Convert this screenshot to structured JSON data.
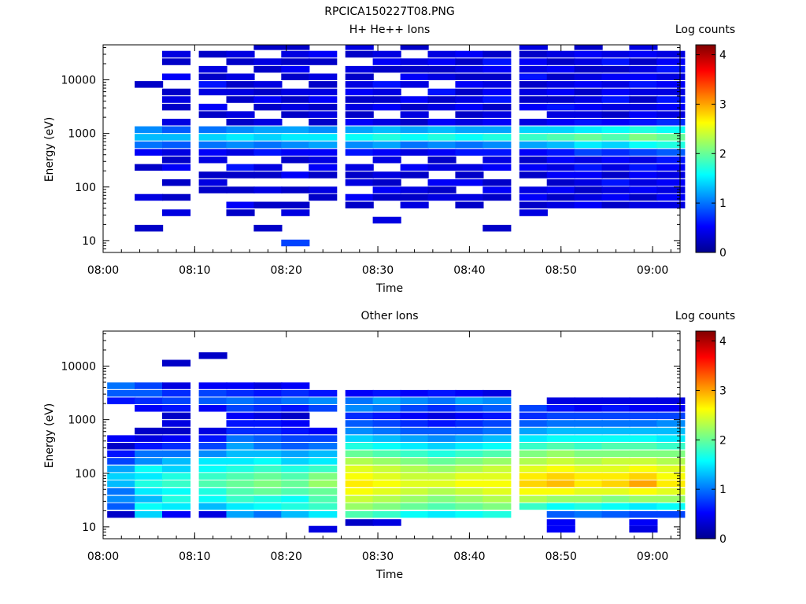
{
  "figure_title": "RPCICA150227T08.PNG",
  "colorbar_ticks": [
    "0",
    "1",
    "2",
    "3",
    "4"
  ],
  "chart_data": [
    {
      "type": "heatmap",
      "title": "H+ He++ Ions",
      "xlabel": "Time",
      "ylabel": "Energy (eV)",
      "colorbar_label": "Log counts",
      "colorbar_range": [
        0,
        4.2
      ],
      "colormap": "jet",
      "y_scale": "log",
      "xlim": [
        "08:00",
        "09:03"
      ],
      "ylim": [
        6,
        45000
      ],
      "x_ticks": [
        "08:00",
        "08:10",
        "08:20",
        "08:30",
        "08:40",
        "08:50",
        "09:00"
      ],
      "y_ticks": [
        "10",
        "100",
        "1000",
        "10000"
      ],
      "time_columns": [
        "08:02",
        "08:05",
        "08:08",
        "08:12",
        "08:15",
        "08:18",
        "08:21",
        "08:24",
        "08:28",
        "08:31",
        "08:34",
        "08:37",
        "08:40",
        "08:43",
        "08:47",
        "08:50",
        "08:53",
        "08:56",
        "08:59",
        "09:02"
      ],
      "energy_channels_ev": [
        9,
        12,
        17,
        24,
        33,
        46,
        64,
        88,
        121,
        168,
        232,
        321,
        444,
        614,
        849,
        1174,
        1623,
        2245,
        3105,
        4294,
        5938,
        8212,
        11356,
        15705,
        21719,
        30036,
        41537
      ],
      "log_counts": [
        [
          0,
          0,
          0,
          0,
          0,
          0,
          0,
          0,
          0,
          0,
          0,
          0,
          0,
          0,
          0,
          0,
          0,
          0,
          0,
          0,
          0,
          0,
          0,
          0,
          0,
          0,
          0
        ],
        [
          0,
          0,
          0.3,
          0,
          0,
          0,
          0.4,
          0,
          0,
          0,
          0.3,
          0,
          0.5,
          1.0,
          1.3,
          1.1,
          0,
          0,
          0,
          0,
          0,
          0.3,
          0,
          0,
          0,
          0,
          0
        ],
        [
          0,
          0,
          0,
          0,
          0.4,
          0,
          0.3,
          0,
          0.3,
          0,
          0.5,
          0.3,
          0.4,
          0.9,
          1.3,
          0.9,
          0.4,
          0,
          0.3,
          0.4,
          0.3,
          0,
          0.5,
          0,
          0.3,
          0.4,
          0
        ],
        [
          0,
          0,
          0,
          0,
          0,
          0,
          0,
          0.3,
          0.4,
          0.3,
          0,
          0.4,
          0.5,
          1.0,
          1.4,
          1.0,
          0,
          0.3,
          0.5,
          0,
          0.4,
          0.6,
          0.3,
          0.4,
          0,
          0.3,
          0
        ],
        [
          0,
          0,
          0,
          0,
          0.3,
          0.5,
          0,
          0.3,
          0,
          0.3,
          0.6,
          0,
          0.4,
          1.1,
          1.5,
          1.1,
          0.3,
          0.4,
          0,
          0.3,
          0.4,
          0.3,
          0.4,
          0,
          0.3,
          0.4,
          0
        ],
        [
          0,
          0,
          0.3,
          0,
          0,
          0.3,
          0,
          0.4,
          0,
          0.3,
          0.4,
          0,
          0.6,
          1.0,
          1.4,
          1.2,
          0.4,
          0,
          0.3,
          0.5,
          0.3,
          0.4,
          0,
          0.3,
          0.4,
          0,
          0.3
        ],
        [
          0.8,
          0,
          0,
          0,
          0.4,
          0.3,
          0,
          0.3,
          0,
          0.5,
          0,
          0.3,
          0.5,
          1.1,
          1.5,
          1.2,
          0,
          0.3,
          0.4,
          0.3,
          0.4,
          0,
          0.3,
          0.5,
          0.3,
          0.4,
          0.3
        ],
        [
          0,
          0,
          0,
          0,
          0,
          0,
          0.3,
          0.4,
          0,
          0.3,
          0.5,
          0.4,
          0.5,
          1.2,
          1.5,
          1.1,
          0.3,
          0.4,
          0.3,
          0.5,
          0.4,
          0.3,
          0.4,
          0,
          0.3,
          0.5,
          0
        ],
        [
          0,
          0,
          0,
          0,
          0,
          0.3,
          0.5,
          0,
          0.4,
          0.3,
          0.4,
          0,
          0.6,
          1.1,
          1.6,
          1.2,
          0.5,
          0.3,
          0.4,
          0.3,
          0.5,
          0.4,
          0.3,
          0.4,
          0,
          0.3,
          0.4
        ],
        [
          0,
          0,
          0,
          0.4,
          0,
          0,
          0.3,
          0.5,
          0.3,
          0.4,
          0,
          0.4,
          0.5,
          1.2,
          1.7,
          1.3,
          0.4,
          0,
          0.5,
          0.3,
          0.4,
          0.6,
          0,
          0.3,
          0.5,
          0.4,
          0
        ],
        [
          0,
          0,
          0,
          0,
          0,
          0.4,
          0.3,
          0.4,
          0,
          0.3,
          0.5,
          0,
          0.4,
          1.0,
          1.6,
          1.2,
          0.3,
          0.4,
          0.3,
          0.5,
          0,
          0.4,
          0.5,
          0.3,
          0.4,
          0,
          0.3
        ],
        [
          0,
          0,
          0,
          0,
          0,
          0,
          0.4,
          0.3,
          0.5,
          0,
          0.4,
          0.3,
          0.5,
          1.1,
          1.7,
          1.3,
          0.5,
          0,
          0.4,
          0.3,
          0.6,
          0,
          0.4,
          0.3,
          0.5,
          0.4,
          0
        ],
        [
          0,
          0,
          0,
          0,
          0,
          0.3,
          0.4,
          0,
          0.5,
          0.3,
          0.4,
          0,
          0.6,
          1.0,
          1.6,
          1.2,
          0.4,
          0.3,
          0.5,
          0.4,
          0.3,
          0.5,
          0.3,
          0.4,
          0.3,
          0.5,
          0
        ],
        [
          0,
          0,
          0.3,
          0,
          0,
          0,
          0.3,
          0.5,
          0.3,
          0,
          0.5,
          0.4,
          0.6,
          1.1,
          1.7,
          1.2,
          0.5,
          0.4,
          0.3,
          0.6,
          0.5,
          0.4,
          0.3,
          0.5,
          0.6,
          0.3,
          0
        ],
        [
          0,
          0,
          0,
          0,
          0.4,
          0.3,
          0.5,
          0.4,
          0,
          0.3,
          0.5,
          0.3,
          0.5,
          1.2,
          1.8,
          1.4,
          0.4,
          0,
          0.5,
          0.3,
          0.4,
          0.3,
          0.6,
          0.4,
          0.5,
          0.3,
          0.4
        ],
        [
          0,
          0,
          0,
          0,
          0,
          0.4,
          0.3,
          0.5,
          0.3,
          0.5,
          0.4,
          0.5,
          0.6,
          1.3,
          1.9,
          1.4,
          0.5,
          0.4,
          0.6,
          0.3,
          0.5,
          0.4,
          0.3,
          0.5,
          0.3,
          0.4,
          0
        ],
        [
          0,
          0,
          0,
          0,
          0,
          0.5,
          0.4,
          0.3,
          0.4,
          0.5,
          0.6,
          0.4,
          0.8,
          1.5,
          2.0,
          1.5,
          0.6,
          0.4,
          0.5,
          0.4,
          0.3,
          0.5,
          0.4,
          0.3,
          0.4,
          0.5,
          0.3
        ],
        [
          0,
          0,
          0,
          0,
          0,
          0.3,
          0.5,
          0.4,
          0.6,
          0.3,
          0.4,
          0.5,
          0.7,
          1.4,
          1.9,
          1.6,
          0.5,
          0.3,
          0.4,
          0.6,
          0.5,
          0.4,
          0.5,
          0.3,
          0.6,
          0.4,
          0
        ],
        [
          0,
          0,
          0,
          0,
          0,
          0.4,
          0.3,
          0.5,
          0.4,
          0.5,
          0.6,
          0.4,
          0.8,
          1.6,
          2.1,
          1.7,
          0.6,
          0.5,
          0.4,
          0.3,
          0.4,
          0.6,
          0.5,
          0.4,
          0.3,
          0.5,
          0.4
        ],
        [
          0,
          0,
          0,
          0,
          0,
          0.4,
          0.5,
          0.4,
          0.5,
          0.4,
          0.5,
          0.6,
          0.9,
          1.7,
          2.0,
          1.6,
          0.7,
          0.4,
          0.5,
          0.6,
          0.4,
          0.5,
          0.4,
          0.6,
          0.5,
          0.4,
          0
        ]
      ]
    },
    {
      "type": "heatmap",
      "title": "Other Ions",
      "xlabel": "Time",
      "ylabel": "Energy (eV)",
      "colorbar_label": "Log counts",
      "colorbar_range": [
        0,
        4.2
      ],
      "colormap": "jet",
      "y_scale": "log",
      "xlim": [
        "08:00",
        "09:03"
      ],
      "ylim": [
        6,
        45000
      ],
      "x_ticks": [
        "08:00",
        "08:10",
        "08:20",
        "08:30",
        "08:40",
        "08:50",
        "09:00"
      ],
      "y_ticks": [
        "10",
        "100",
        "1000",
        "10000"
      ],
      "time_columns": [
        "08:02",
        "08:05",
        "08:08",
        "08:12",
        "08:15",
        "08:18",
        "08:21",
        "08:24",
        "08:28",
        "08:31",
        "08:34",
        "08:37",
        "08:40",
        "08:43",
        "08:47",
        "08:50",
        "08:53",
        "08:56",
        "08:59",
        "09:02"
      ],
      "energy_channels_ev": [
        9,
        12,
        17,
        24,
        33,
        46,
        64,
        88,
        121,
        168,
        232,
        321,
        444,
        614,
        849,
        1174,
        1623,
        2245,
        3105,
        4294,
        5938,
        8212,
        11356,
        15705,
        21719,
        30036,
        41537
      ],
      "log_counts": [
        [
          0,
          0,
          0.3,
          0.9,
          1.1,
          1.0,
          1.3,
          1.4,
          1.2,
          0.8,
          0.6,
          0.3,
          0.5,
          0,
          0,
          0,
          0,
          0.6,
          0.9,
          1.0,
          0,
          0,
          0,
          0,
          0,
          0,
          0
        ],
        [
          0,
          0,
          1.4,
          1.6,
          1.3,
          1.5,
          1.7,
          1.5,
          1.6,
          1.1,
          1.0,
          0.6,
          0.4,
          0.3,
          0,
          0,
          0.5,
          0.7,
          0.9,
          0.8,
          0,
          0,
          0,
          0,
          0,
          0,
          0
        ],
        [
          0,
          0,
          0.5,
          1.5,
          1.7,
          1.6,
          1.8,
          1.7,
          1.4,
          1.3,
          1.0,
          0.7,
          0.5,
          0.3,
          0.4,
          0.3,
          0.6,
          0.8,
          0.7,
          0.4,
          0,
          0,
          0.3,
          0,
          0,
          0,
          0
        ],
        [
          0,
          0,
          0.4,
          1.3,
          1.6,
          1.7,
          1.9,
          1.8,
          1.6,
          1.5,
          1.1,
          0.8,
          0.6,
          0.4,
          0,
          0,
          0.5,
          0.9,
          0.8,
          0.5,
          0,
          0,
          0,
          0.3,
          0,
          0,
          0
        ],
        [
          0,
          0,
          1.2,
          1.5,
          1.8,
          1.9,
          2.0,
          1.9,
          1.7,
          1.5,
          1.3,
          1.2,
          1.0,
          0.7,
          0.6,
          0.5,
          0.8,
          1.0,
          0.7,
          0.5,
          0,
          0,
          0,
          0,
          0,
          0,
          0
        ],
        [
          0,
          0,
          1.0,
          1.6,
          1.7,
          2.0,
          2.1,
          2.0,
          1.8,
          1.6,
          1.3,
          1.0,
          0.9,
          0.7,
          0.6,
          0.4,
          0.7,
          0.9,
          0.6,
          0.4,
          0,
          0,
          0,
          0,
          0,
          0,
          0
        ],
        [
          0,
          0,
          1.3,
          1.7,
          1.6,
          1.9,
          2.0,
          1.9,
          1.7,
          1.4,
          1.2,
          0.9,
          0.8,
          0.6,
          0.5,
          0.3,
          0.6,
          1.0,
          0.7,
          0.5,
          0,
          0,
          0,
          0,
          0,
          0,
          0
        ],
        [
          0.4,
          0,
          1.5,
          1.8,
          1.9,
          2.0,
          2.2,
          2.1,
          1.8,
          1.5,
          1.3,
          1.0,
          0.8,
          0.5,
          0,
          0,
          0.8,
          1.1,
          0.6,
          0,
          0,
          0,
          0,
          0,
          0,
          0,
          0
        ],
        [
          0,
          0.3,
          1.9,
          2.2,
          2.4,
          2.6,
          2.7,
          2.6,
          2.5,
          2.3,
          2.0,
          1.7,
          1.4,
          1.1,
          0.9,
          0.7,
          1.1,
          1.0,
          0.5,
          0,
          0,
          0,
          0,
          0,
          0,
          0,
          0
        ],
        [
          0,
          0.4,
          1.8,
          2.1,
          2.3,
          2.5,
          2.6,
          2.5,
          2.4,
          2.2,
          1.9,
          1.6,
          1.3,
          1.0,
          0.8,
          0.6,
          1.0,
          1.2,
          0.6,
          0,
          0,
          0,
          0,
          0,
          0,
          0,
          0
        ],
        [
          0,
          0,
          1.6,
          2.0,
          2.2,
          2.4,
          2.5,
          2.4,
          2.3,
          2.1,
          1.8,
          1.5,
          1.2,
          0.9,
          0.7,
          0.5,
          0.8,
          1.1,
          0.5,
          0,
          0,
          0,
          0,
          0,
          0,
          0,
          0
        ],
        [
          0,
          0,
          1.5,
          1.9,
          2.1,
          2.3,
          2.5,
          2.4,
          2.2,
          2.0,
          1.7,
          1.4,
          1.1,
          0.9,
          0.6,
          0.4,
          0.7,
          1.0,
          0.6,
          0,
          0,
          0,
          0,
          0,
          0,
          0,
          0
        ],
        [
          0,
          0,
          1.6,
          2.0,
          2.2,
          2.4,
          2.6,
          2.5,
          2.3,
          2.1,
          1.8,
          1.5,
          1.2,
          0.9,
          0.7,
          0.5,
          0.8,
          1.2,
          0.5,
          0,
          0,
          0,
          0,
          0,
          0,
          0,
          0
        ],
        [
          0,
          0,
          1.7,
          2.1,
          2.3,
          2.5,
          2.6,
          2.5,
          2.4,
          2.2,
          1.9,
          1.6,
          1.3,
          1.0,
          0.8,
          0.6,
          0.9,
          1.1,
          0.4,
          0,
          0,
          0,
          0,
          0,
          0,
          0,
          0
        ],
        [
          0,
          0,
          0,
          1.8,
          2.3,
          2.6,
          2.8,
          2.7,
          2.5,
          2.3,
          2.1,
          1.8,
          1.5,
          1.2,
          0.9,
          0.7,
          0.8,
          0,
          0,
          0,
          0,
          0,
          0,
          0,
          0,
          0,
          0
        ],
        [
          0.5,
          0.5,
          0.9,
          1.6,
          2.2,
          2.6,
          2.9,
          2.8,
          2.6,
          2.4,
          2.2,
          1.9,
          1.6,
          1.3,
          1.0,
          0.8,
          0.6,
          0.4,
          0,
          0,
          0,
          0,
          0,
          0,
          0,
          0,
          0
        ],
        [
          0,
          0,
          1.0,
          1.7,
          2.2,
          2.5,
          2.7,
          2.7,
          2.5,
          2.3,
          2.1,
          1.8,
          1.6,
          1.3,
          1.0,
          0.8,
          0.5,
          0.4,
          0,
          0,
          0,
          0,
          0,
          0,
          0,
          0,
          0
        ],
        [
          0,
          0,
          0.9,
          1.6,
          2.1,
          2.5,
          2.8,
          2.7,
          2.5,
          2.4,
          2.1,
          1.9,
          1.6,
          1.3,
          1.0,
          0.8,
          0.6,
          0.4,
          0,
          0,
          0,
          0,
          0,
          0,
          0,
          0,
          0
        ],
        [
          0.4,
          0.5,
          0.8,
          1.5,
          2.2,
          2.6,
          3.0,
          2.8,
          2.6,
          2.4,
          2.1,
          1.9,
          1.6,
          1.3,
          1.0,
          0.8,
          0.5,
          0.4,
          0,
          0,
          0,
          0,
          0,
          0,
          0,
          0,
          0
        ],
        [
          0,
          0,
          0.8,
          1.6,
          2.2,
          2.5,
          2.7,
          2.6,
          2.5,
          2.3,
          2.1,
          1.8,
          1.5,
          1.3,
          1.1,
          0.8,
          0.5,
          0.4,
          0,
          0,
          0,
          0,
          0,
          0,
          0,
          0,
          0
        ]
      ]
    }
  ]
}
